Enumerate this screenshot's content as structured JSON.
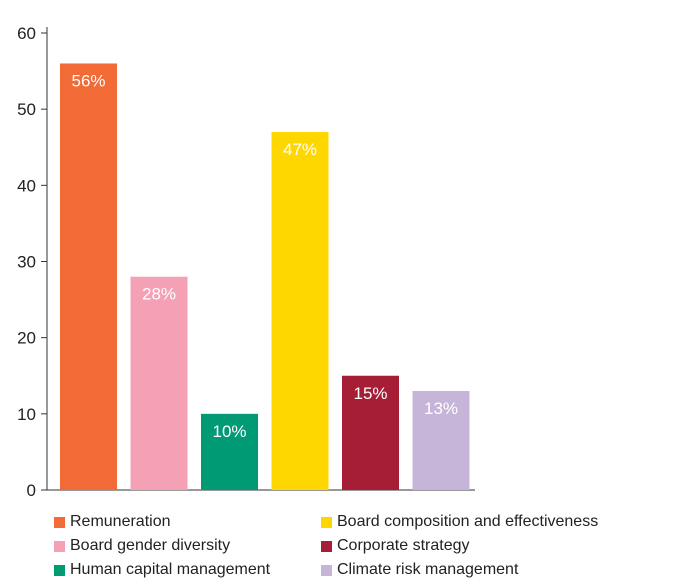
{
  "chart_data": {
    "type": "bar",
    "categories": [
      "Remuneration",
      "Board gender diversity",
      "Human capital management",
      "Board composition and effectiveness",
      "Corporate strategy",
      "Climate risk management"
    ],
    "values": [
      56,
      28,
      10,
      47,
      15,
      13
    ],
    "data_labels": [
      "56%",
      "28%",
      "10%",
      "47%",
      "15%",
      "13%"
    ],
    "colors": [
      "#f26a36",
      "#f4a0b5",
      "#009a74",
      "#ffd700",
      "#a51e36",
      "#c7b5d9"
    ],
    "ylim": [
      0,
      60
    ],
    "yticks": [
      0,
      10,
      20,
      30,
      40,
      50,
      60
    ],
    "grid": false,
    "legend": "bottom",
    "legend_order": [
      0,
      3,
      1,
      4,
      2,
      5
    ]
  }
}
